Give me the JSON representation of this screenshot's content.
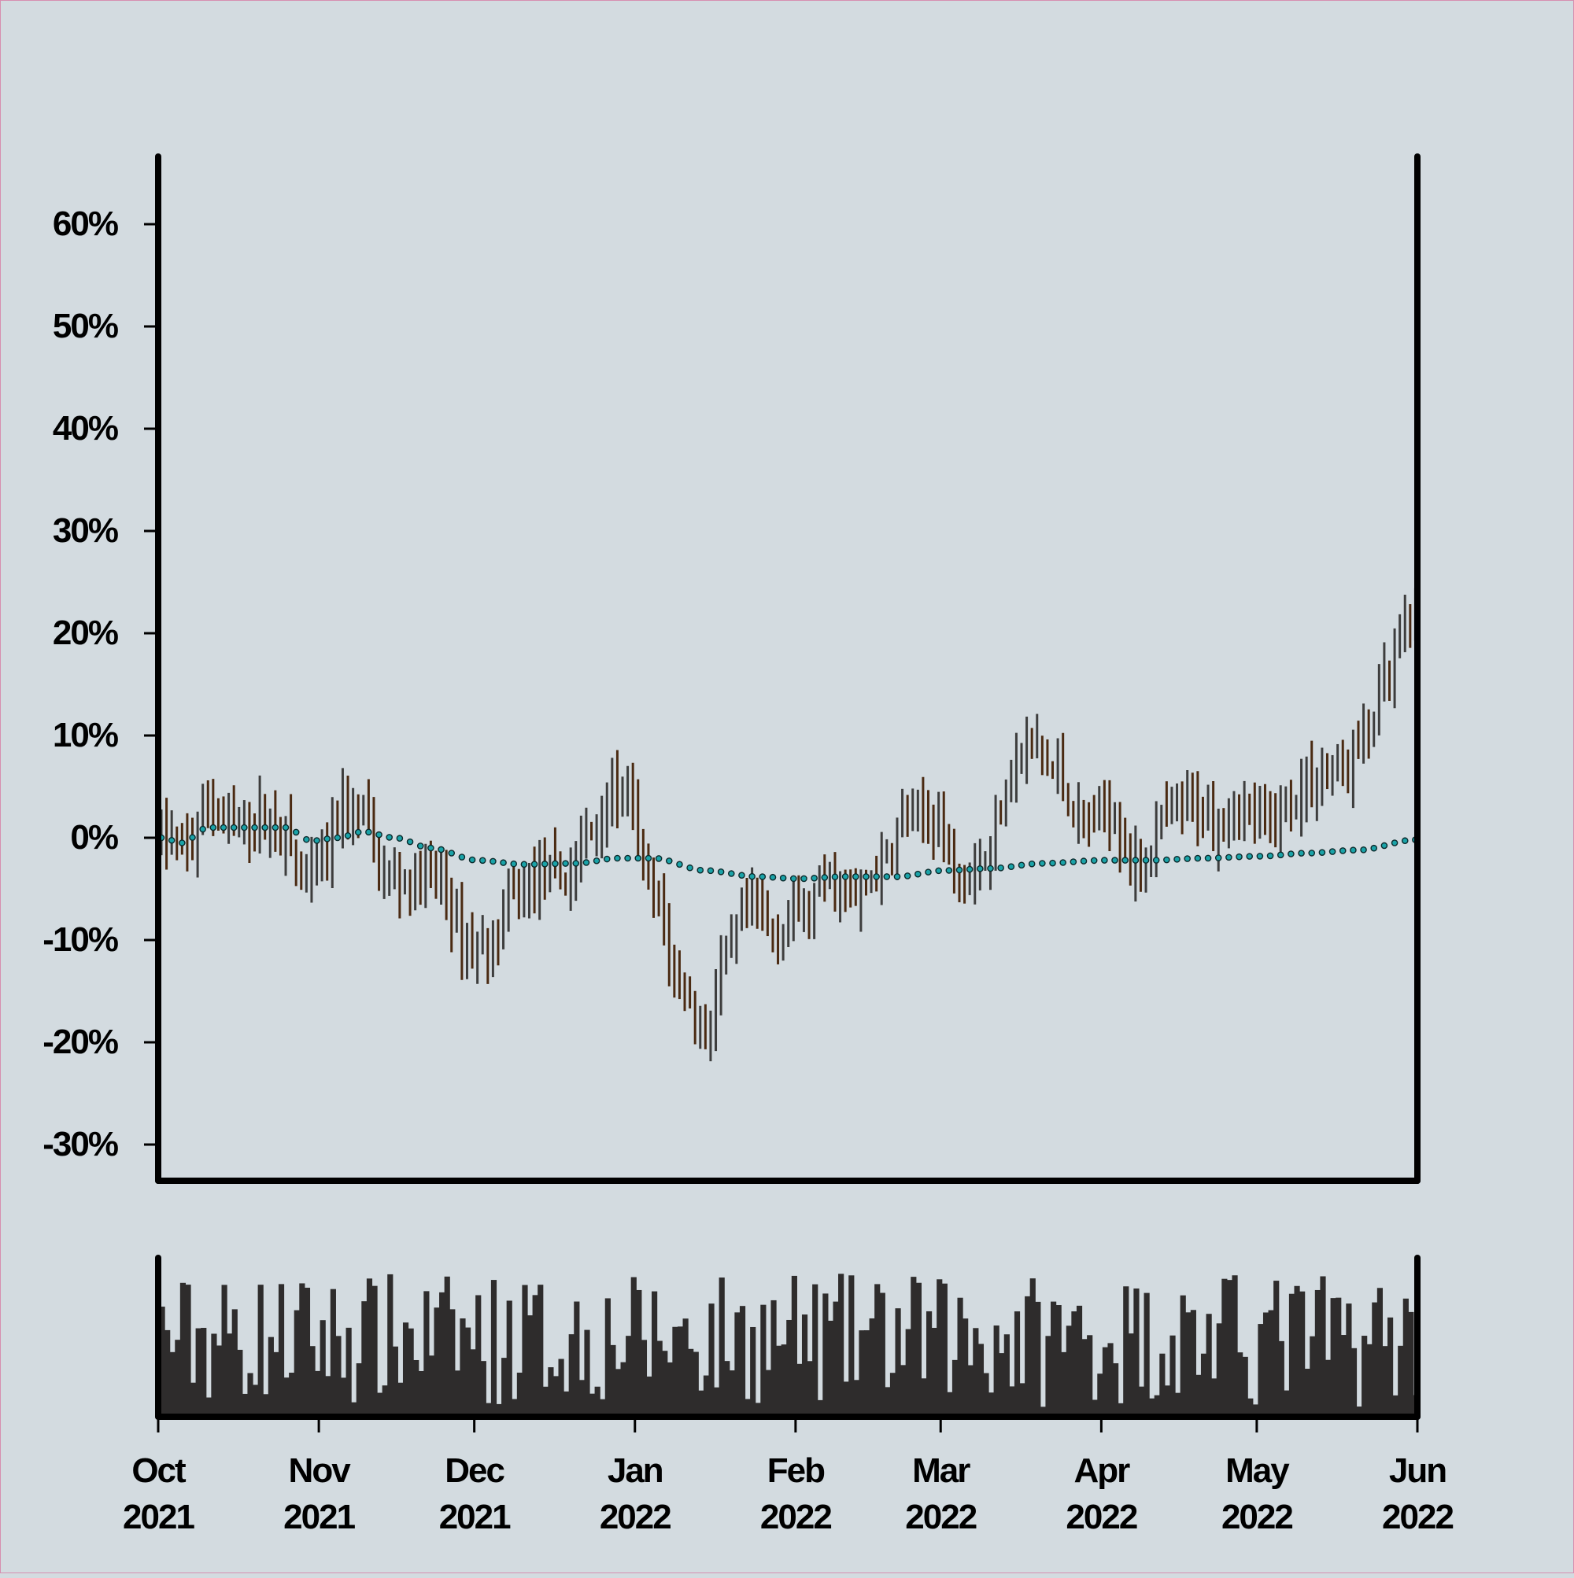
{
  "chart_data": {
    "type": "ohlc",
    "title": "",
    "xlabel": "",
    "ylabel": "",
    "y_ticks": [
      {
        "value": 60,
        "label": "60%"
      },
      {
        "value": 50,
        "label": "50%"
      },
      {
        "value": 40,
        "label": "40%"
      },
      {
        "value": 30,
        "label": "30%"
      },
      {
        "value": 20,
        "label": "20%"
      },
      {
        "value": 10,
        "label": "10%"
      },
      {
        "value": 0,
        "label": "0%"
      },
      {
        "value": -10,
        "label": "-10%"
      },
      {
        "value": -20,
        "label": "-20%"
      },
      {
        "value": -30,
        "label": "-30%"
      }
    ],
    "ylim": [
      -33,
      66
    ],
    "x_range": [
      "2021-10-01",
      "2022-06-01"
    ],
    "x_ticks": [
      {
        "date": "2021-10-01",
        "month": "Oct",
        "year": "2021"
      },
      {
        "date": "2021-11-01",
        "month": "Nov",
        "year": "2021"
      },
      {
        "date": "2021-12-01",
        "month": "Dec",
        "year": "2021"
      },
      {
        "date": "2022-01-01",
        "month": "Jan",
        "year": "2022"
      },
      {
        "date": "2022-02-01",
        "month": "Feb",
        "year": "2022"
      },
      {
        "date": "2022-03-01",
        "month": "Mar",
        "year": "2022"
      },
      {
        "date": "2022-04-01",
        "month": "Apr",
        "year": "2022"
      },
      {
        "date": "2022-05-01",
        "month": "May",
        "year": "2022"
      },
      {
        "date": "2022-06-01",
        "month": "Jun",
        "year": "2022"
      }
    ],
    "price_anchors": [
      [
        "2021-10-01",
        0
      ],
      [
        "2021-10-06",
        -1
      ],
      [
        "2021-10-10",
        4
      ],
      [
        "2021-10-14",
        1
      ],
      [
        "2021-10-20",
        2
      ],
      [
        "2021-10-25",
        0
      ],
      [
        "2021-10-29",
        -5
      ],
      [
        "2021-11-02",
        -2
      ],
      [
        "2021-11-05",
        3
      ],
      [
        "2021-11-09",
        2
      ],
      [
        "2021-11-13",
        -4
      ],
      [
        "2021-11-18",
        -4
      ],
      [
        "2021-11-24",
        -4
      ],
      [
        "2021-11-28",
        -10
      ],
      [
        "2021-12-03",
        -11
      ],
      [
        "2021-12-08",
        -6
      ],
      [
        "2021-12-13",
        -4
      ],
      [
        "2021-12-18",
        -4
      ],
      [
        "2021-12-22",
        0
      ],
      [
        "2021-12-27",
        5
      ],
      [
        "2021-12-30",
        3
      ],
      [
        "2022-01-04",
        -6
      ],
      [
        "2022-01-09",
        -14
      ],
      [
        "2022-01-14",
        -19
      ],
      [
        "2022-01-18",
        -12
      ],
      [
        "2022-01-22",
        -7
      ],
      [
        "2022-01-27",
        -9
      ],
      [
        "2022-02-02",
        -7
      ],
      [
        "2022-02-07",
        -4
      ],
      [
        "2022-02-12",
        -6
      ],
      [
        "2022-02-17",
        -3
      ],
      [
        "2022-02-22",
        2
      ],
      [
        "2022-02-27",
        2
      ],
      [
        "2022-03-04",
        -3
      ],
      [
        "2022-03-09",
        -2
      ],
      [
        "2022-03-14",
        7
      ],
      [
        "2022-03-18",
        9
      ],
      [
        "2022-03-23",
        6
      ],
      [
        "2022-03-28",
        1
      ],
      [
        "2022-04-02",
        3
      ],
      [
        "2022-04-07",
        -3
      ],
      [
        "2022-04-12",
        1
      ],
      [
        "2022-04-17",
        3
      ],
      [
        "2022-04-22",
        2
      ],
      [
        "2022-04-27",
        3
      ],
      [
        "2022-05-02",
        1
      ],
      [
        "2022-05-07",
        4
      ],
      [
        "2022-05-12",
        6
      ],
      [
        "2022-05-17",
        7
      ],
      [
        "2022-05-21",
        10
      ],
      [
        "2022-05-25",
        15
      ],
      [
        "2022-05-29",
        20
      ],
      [
        "2022-06-01",
        24
      ]
    ],
    "moving_average": [
      [
        "2021-10-01",
        0
      ],
      [
        "2021-10-05",
        -0.5
      ],
      [
        "2021-10-10",
        1
      ],
      [
        "2021-10-18",
        1
      ],
      [
        "2021-10-25",
        1
      ],
      [
        "2021-10-30",
        -0.3
      ],
      [
        "2021-11-04",
        0
      ],
      [
        "2021-11-09",
        0.6
      ],
      [
        "2021-11-15",
        0
      ],
      [
        "2021-11-22",
        -1
      ],
      [
        "2021-12-01",
        -2.2
      ],
      [
        "2021-12-10",
        -2.6
      ],
      [
        "2021-12-20",
        -2.5
      ],
      [
        "2021-12-28",
        -2
      ],
      [
        "2022-01-04",
        -2
      ],
      [
        "2022-01-14",
        -3.2
      ],
      [
        "2022-01-24",
        -3.8
      ],
      [
        "2022-02-01",
        -4
      ],
      [
        "2022-02-10",
        -3.8
      ],
      [
        "2022-02-20",
        -3.8
      ],
      [
        "2022-03-01",
        -3.2
      ],
      [
        "2022-03-10",
        -3
      ],
      [
        "2022-03-20",
        -2.5
      ],
      [
        "2022-04-01",
        -2.2
      ],
      [
        "2022-04-10",
        -2.2
      ],
      [
        "2022-04-20",
        -2
      ],
      [
        "2022-05-01",
        -1.8
      ],
      [
        "2022-05-10",
        -1.5
      ],
      [
        "2022-05-20",
        -1.2
      ],
      [
        "2022-05-31",
        -0.2
      ]
    ],
    "volume_note": "unlabeled daily volume bars",
    "colors": {
      "background": "#d3dbe0",
      "up_bar": "#3d3d3d",
      "down_bar": "#4a2a12",
      "moving_average": "#1aa3a8",
      "moving_average_edge": "#0b2a2c",
      "volume": "#2e2c2c",
      "axis": "#000000",
      "frame_border": "#d68fb0"
    }
  }
}
